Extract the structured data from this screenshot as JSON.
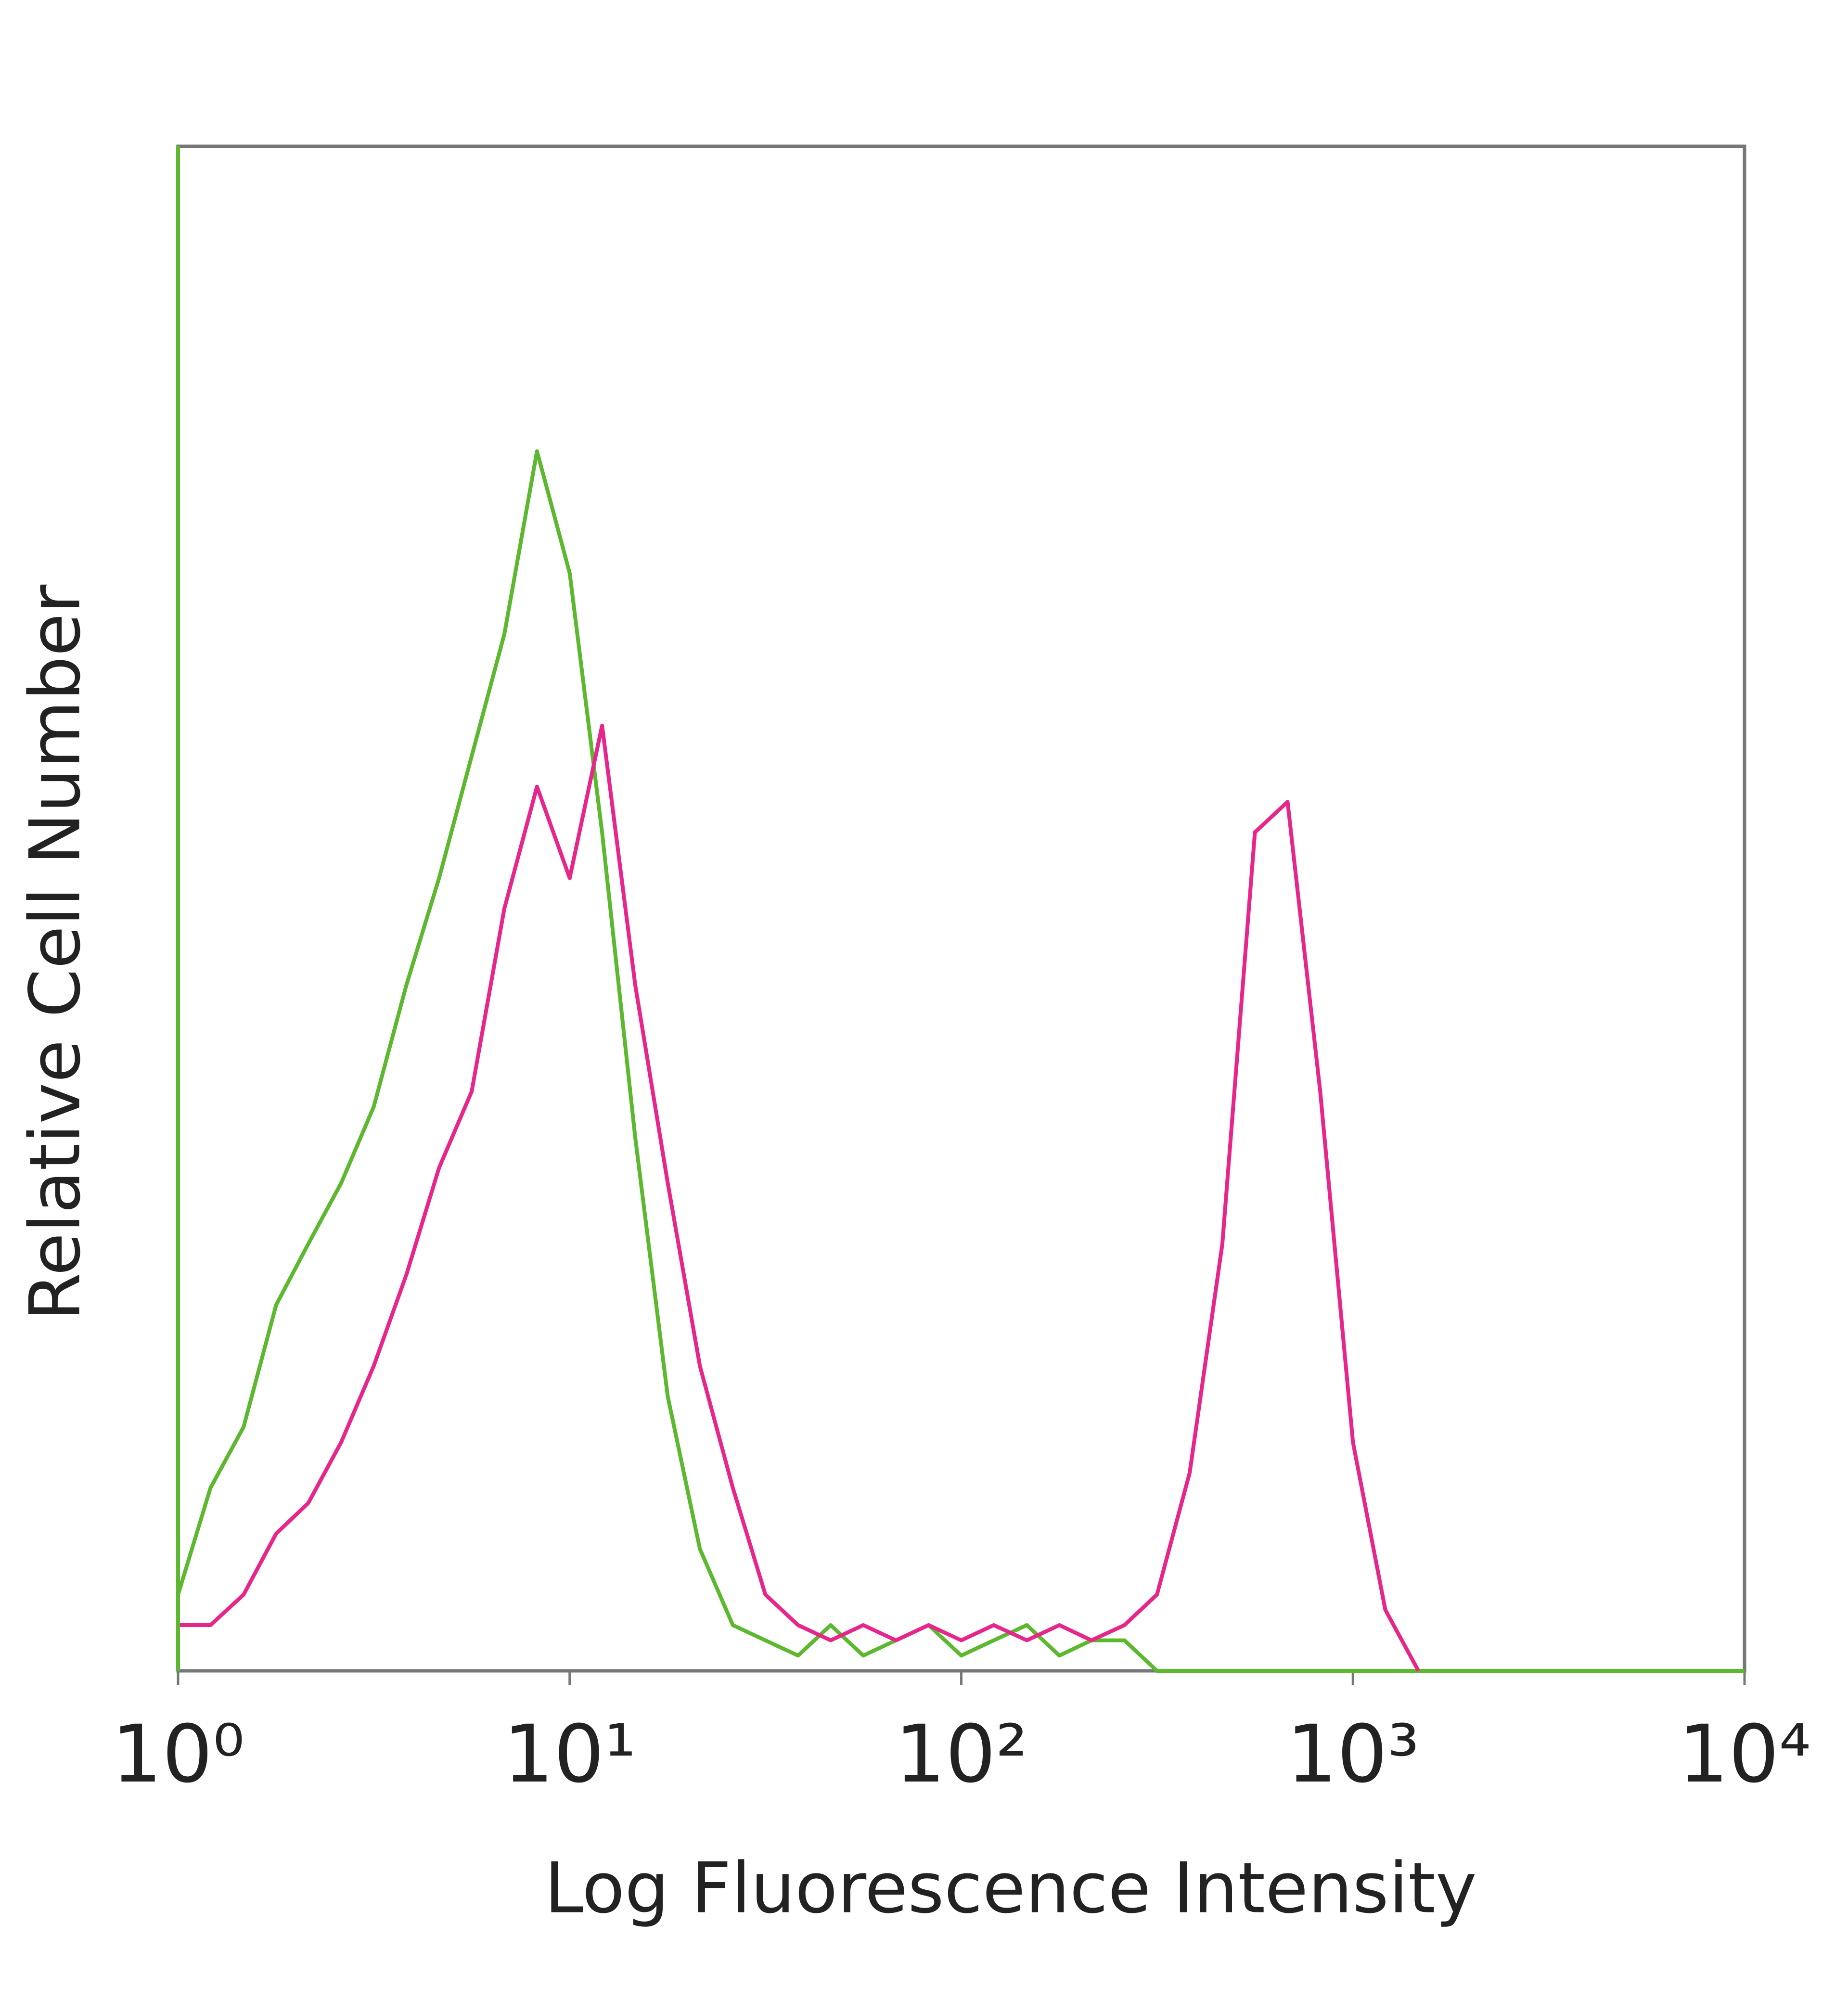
{
  "chart_data": {
    "type": "line",
    "xlabel": "Log Fluorescence Intensity",
    "ylabel": "Relative Cell Number",
    "xscale": "log",
    "xlim": [
      1,
      10000
    ],
    "ylim": [
      0,
      100
    ],
    "xticks": [
      {
        "value": 1,
        "label": "10⁰"
      },
      {
        "value": 10,
        "label": "10¹"
      },
      {
        "value": 100,
        "label": "10²"
      },
      {
        "value": 1000,
        "label": "10³"
      },
      {
        "value": 10000,
        "label": "10⁴"
      }
    ],
    "x": [
      1,
      1.21,
      1.47,
      1.78,
      2.15,
      2.61,
      3.16,
      3.83,
      4.64,
      5.62,
      6.81,
      8.25,
      10,
      12.1,
      14.7,
      17.8,
      21.5,
      26.1,
      31.6,
      38.3,
      46.4,
      56.2,
      68.1,
      82.5,
      100,
      121,
      147,
      178,
      215,
      261,
      316,
      383,
      464,
      562,
      681,
      825,
      1000,
      1210,
      1470,
      1780,
      2150,
      2610,
      3160,
      3830,
      4640,
      5620,
      6810,
      8250,
      10000
    ],
    "series": [
      {
        "color": "#5cb82e",
        "values": [
          5,
          12,
          16,
          24,
          28,
          32,
          37,
          45,
          52,
          60,
          68,
          80,
          72,
          55,
          35,
          18,
          8,
          3,
          2,
          1,
          3,
          1,
          2,
          3,
          1,
          2,
          3,
          1,
          2,
          2,
          0,
          0,
          0,
          0,
          0,
          0,
          0,
          0,
          0,
          0,
          0,
          0,
          0,
          0,
          0,
          0,
          0,
          0,
          0
        ]
      },
      {
        "color": "#e8258a",
        "values": [
          3,
          3,
          5,
          9,
          11,
          15,
          20,
          26,
          33,
          38,
          50,
          58,
          52,
          62,
          45,
          32,
          20,
          12,
          5,
          3,
          2,
          3,
          2,
          3,
          2,
          3,
          2,
          3,
          2,
          3,
          5,
          13,
          28,
          55,
          57,
          38,
          15,
          4,
          0,
          null,
          null,
          null,
          null,
          null,
          null,
          null,
          null,
          null,
          null
        ]
      }
    ]
  }
}
